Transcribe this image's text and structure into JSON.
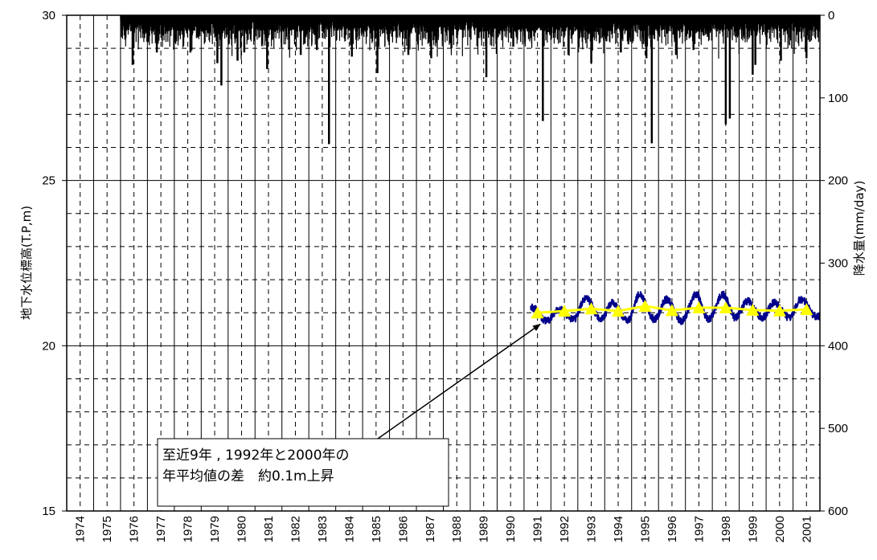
{
  "chart_data": {
    "type": "line",
    "ylabel": "地下水位標高(T.P,m)",
    "y2label": "降水量(mm/day)",
    "ylim": [
      15,
      30
    ],
    "y2lim": [
      0,
      600
    ],
    "y2_inverted": true,
    "xlim": [
      1974,
      2002
    ],
    "grid": true,
    "categories": [
      "1974",
      "1975",
      "1976",
      "1977",
      "1978",
      "1979",
      "1980",
      "1981",
      "1982",
      "1983",
      "1984",
      "1985",
      "1986",
      "1987",
      "1988",
      "1989",
      "1990",
      "1991",
      "1992",
      "1993",
      "1994",
      "1995",
      "1996",
      "1997",
      "1998",
      "1999",
      "2000",
      "2001"
    ],
    "y_ticks": [
      "15",
      "20",
      "25",
      "30"
    ],
    "y2_ticks": [
      "0",
      "100",
      "200",
      "300",
      "400",
      "500",
      "600"
    ],
    "series": [
      {
        "kind": "bar",
        "axis": "y2",
        "color": "#000000",
        "x_start": 1976.0,
        "x_end": 2002.0,
        "big_events": [
          {
            "x": 1976.45,
            "y": 60
          },
          {
            "x": 1977.35,
            "y": 45
          },
          {
            "x": 1978.6,
            "y": 45
          },
          {
            "x": 1979.6,
            "y": 58
          },
          {
            "x": 1979.75,
            "y": 85
          },
          {
            "x": 1980.35,
            "y": 55
          },
          {
            "x": 1980.6,
            "y": 45
          },
          {
            "x": 1981.45,
            "y": 65
          },
          {
            "x": 1982.7,
            "y": 48
          },
          {
            "x": 1983.3,
            "y": 42
          },
          {
            "x": 1983.75,
            "y": 156
          },
          {
            "x": 1984.6,
            "y": 50
          },
          {
            "x": 1985.55,
            "y": 70
          },
          {
            "x": 1986.7,
            "y": 48
          },
          {
            "x": 1987.55,
            "y": 52
          },
          {
            "x": 1988.3,
            "y": 40
          },
          {
            "x": 1989.6,
            "y": 75
          },
          {
            "x": 1990.6,
            "y": 38
          },
          {
            "x": 1991.7,
            "y": 128
          },
          {
            "x": 1992.65,
            "y": 48
          },
          {
            "x": 1993.5,
            "y": 58
          },
          {
            "x": 1994.6,
            "y": 45
          },
          {
            "x": 1995.55,
            "y": 52
          },
          {
            "x": 1995.75,
            "y": 155
          },
          {
            "x": 1996.65,
            "y": 48
          },
          {
            "x": 1997.3,
            "y": 42
          },
          {
            "x": 1998.5,
            "y": 132
          },
          {
            "x": 1998.65,
            "y": 125
          },
          {
            "x": 1999.5,
            "y": 72
          },
          {
            "x": 1999.6,
            "y": 60
          },
          {
            "x": 2000.55,
            "y": 55
          },
          {
            "x": 2001.5,
            "y": 52
          }
        ]
      },
      {
        "kind": "line",
        "axis": "y",
        "color": "#00008b",
        "x_start": 1991.25,
        "x_end": 2002.0,
        "peaks": [
          {
            "x": 1991.3,
            "y": 21.15
          },
          {
            "x": 1992.3,
            "y": 21.1
          },
          {
            "x": 1993.3,
            "y": 21.45
          },
          {
            "x": 1994.3,
            "y": 21.3
          },
          {
            "x": 1995.3,
            "y": 21.55
          },
          {
            "x": 1996.3,
            "y": 21.4
          },
          {
            "x": 1997.4,
            "y": 21.55
          },
          {
            "x": 1998.4,
            "y": 21.55
          },
          {
            "x": 1999.3,
            "y": 21.35
          },
          {
            "x": 2000.3,
            "y": 21.3
          },
          {
            "x": 2001.3,
            "y": 21.4
          }
        ],
        "troughs": [
          {
            "x": 1991.85,
            "y": 20.75
          },
          {
            "x": 1992.85,
            "y": 20.8
          },
          {
            "x": 1993.85,
            "y": 20.8
          },
          {
            "x": 1994.85,
            "y": 20.75
          },
          {
            "x": 1995.85,
            "y": 20.8
          },
          {
            "x": 1996.85,
            "y": 20.75
          },
          {
            "x": 1997.85,
            "y": 20.8
          },
          {
            "x": 1998.85,
            "y": 20.85
          },
          {
            "x": 1999.85,
            "y": 20.85
          },
          {
            "x": 2000.85,
            "y": 20.85
          },
          {
            "x": 2001.85,
            "y": 20.9
          }
        ]
      },
      {
        "kind": "line",
        "axis": "y",
        "color": "#ffff00",
        "marker": "triangle",
        "x": [
          1991.5,
          1992.5,
          1993.5,
          1994.5,
          1995.5,
          1996.5,
          1997.5,
          1998.5,
          1999.5,
          2000.5,
          2001.5
        ],
        "values": [
          21.0,
          21.05,
          21.12,
          21.05,
          21.2,
          21.07,
          21.15,
          21.15,
          21.08,
          21.06,
          21.1
        ]
      }
    ],
    "annotations": [
      {
        "text_lines": [
          "至近9年 , 1992年と2000年の",
          "年平均値の差　約0.1m上昇"
        ],
        "arrow_target": {
          "x": 1991.6,
          "y": 20.65
        }
      }
    ]
  }
}
